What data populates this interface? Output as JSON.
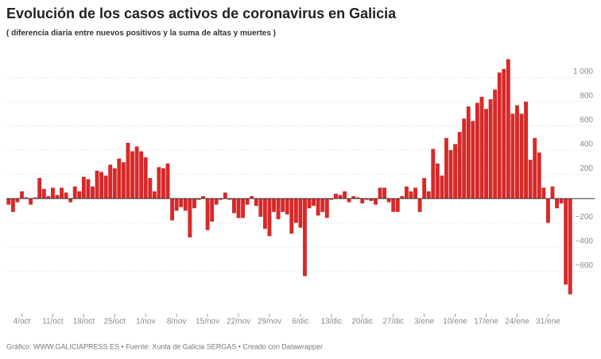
{
  "chart_data": {
    "type": "bar",
    "title": "Evolución de los casos activos de coronavirus en Galicia",
    "subtitle": "( diferencia diaria entre nuevos positivos y la suma de altas y muertes )",
    "footer": "Gráfico: WWW.GALICIAPRESS.ES • Fuente: Xunta de Galicia SERGAS • Creado con Datawrapper",
    "color": "#d52a29",
    "grid": true,
    "ylim": [
      -950,
      1180
    ],
    "yticks": [
      {
        "value": -600,
        "label": "−600"
      },
      {
        "value": -400,
        "label": "−400"
      },
      {
        "value": -200,
        "label": "−200"
      },
      200,
      400,
      600,
      800,
      {
        "value": 1000,
        "label": "1 000"
      }
    ],
    "categories": [
      null,
      null,
      null,
      "4/oct",
      null,
      null,
      null,
      null,
      null,
      null,
      "11/oct",
      null,
      null,
      null,
      null,
      null,
      null,
      "18/oct",
      null,
      null,
      null,
      null,
      null,
      null,
      "25/oct",
      null,
      null,
      null,
      null,
      null,
      null,
      "1/nov",
      null,
      null,
      null,
      null,
      null,
      null,
      "8/nov",
      null,
      null,
      null,
      null,
      null,
      null,
      "15/nov",
      null,
      null,
      null,
      null,
      null,
      null,
      "22/nov",
      null,
      null,
      null,
      null,
      null,
      null,
      "29/nov",
      null,
      null,
      null,
      null,
      null,
      null,
      "6/dic",
      null,
      null,
      null,
      null,
      null,
      null,
      "13/dic",
      null,
      null,
      null,
      null,
      null,
      null,
      "20/dic",
      null,
      null,
      null,
      null,
      null,
      null,
      "27/dic",
      null,
      null,
      null,
      null,
      null,
      null,
      "3/ene",
      null,
      null,
      null,
      null,
      null,
      null,
      "10/ene",
      null,
      null,
      null,
      null,
      null,
      null,
      "17/ene",
      null,
      null,
      null,
      null,
      null,
      null,
      "24/ene",
      null,
      null,
      null,
      null,
      null,
      null,
      "31/ene",
      null,
      null,
      null,
      null,
      null
    ],
    "values": [
      -50,
      -110,
      -30,
      60,
      10,
      -50,
      10,
      170,
      80,
      20,
      90,
      30,
      90,
      50,
      -30,
      100,
      60,
      180,
      160,
      100,
      230,
      220,
      190,
      280,
      250,
      330,
      300,
      460,
      390,
      430,
      390,
      340,
      170,
      60,
      260,
      250,
      290,
      -180,
      -100,
      -70,
      -100,
      -320,
      -80,
      -10,
      20,
      -260,
      -190,
      -50,
      -10,
      50,
      -10,
      -120,
      -160,
      -160,
      -50,
      20,
      -60,
      -150,
      -250,
      -310,
      -110,
      -170,
      -110,
      -130,
      -290,
      -200,
      -240,
      -640,
      -80,
      -60,
      -140,
      -110,
      -160,
      -10,
      40,
      30,
      60,
      -30,
      20,
      10,
      -40,
      -10,
      -20,
      -50,
      90,
      90,
      -30,
      -110,
      -110,
      20,
      100,
      60,
      90,
      -110,
      170,
      60,
      410,
      290,
      190,
      500,
      400,
      450,
      550,
      660,
      760,
      640,
      790,
      840,
      740,
      820,
      900,
      1040,
      1070,
      1150,
      700,
      770,
      700,
      800,
      320,
      500,
      380,
      90,
      -200,
      100,
      -80,
      -40,
      -710,
      -790
    ]
  }
}
